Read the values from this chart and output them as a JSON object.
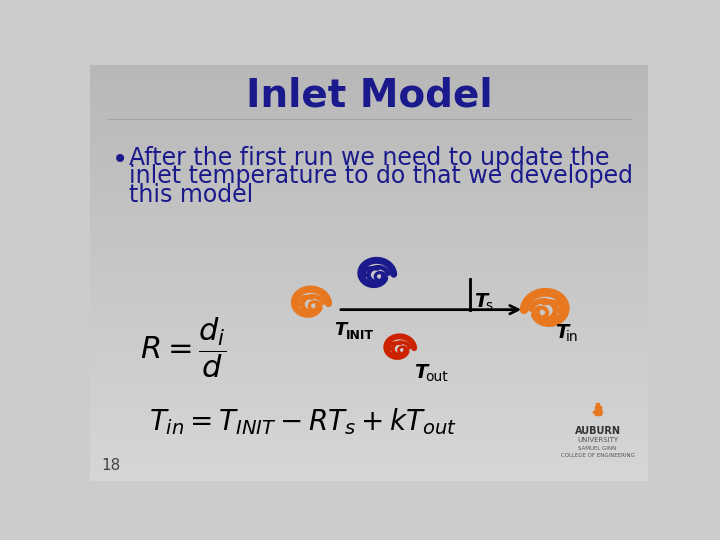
{
  "title": "Inlet Model",
  "title_color": "#1a1a8c",
  "title_fontsize": 28,
  "bullet_text_line1": "After the first run we need to update the",
  "bullet_text_line2": "inlet temperature to do that we developed",
  "bullet_text_line3": "this model",
  "bullet_color": "#1a1a8c",
  "bullet_fontsize": 17,
  "page_number": "18",
  "label_Ts": "T",
  "label_Ts_sub": "s",
  "label_TINIT": "T",
  "label_TINIT_sub": "INIT",
  "label_Tin": "T",
  "label_Tin_sub": "in",
  "label_Tout": "T",
  "label_Tout_sub": "out",
  "swirl_orange_color": "#e87820",
  "swirl_blue_color": "#1a1a8c",
  "swirl_red_color": "#cc2200",
  "arrow_color": "#000000",
  "bg_left_color": "#b8b8b8",
  "bg_right_color": "#d8d8d8"
}
